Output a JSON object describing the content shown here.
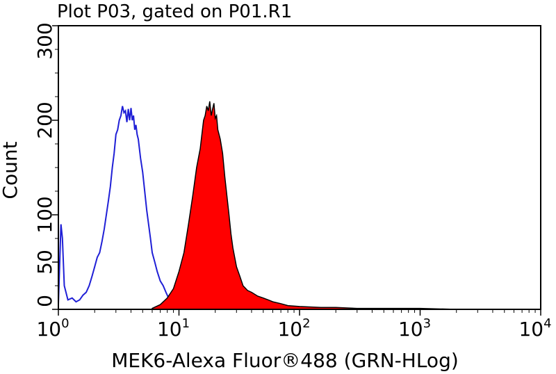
{
  "chart_data": {
    "type": "area",
    "title": "Plot P03, gated on P01.R1",
    "xlabel": "MEK6-Alexa Fluor®488 (GRN-HLog)",
    "ylabel": "Count",
    "x_scale": "log",
    "xlim": [
      1,
      10000
    ],
    "ylim": [
      0,
      300
    ],
    "x_ticks": [
      {
        "base": "10",
        "exp": "0"
      },
      {
        "base": "10",
        "exp": "1"
      },
      {
        "base": "10",
        "exp": "2"
      },
      {
        "base": "10",
        "exp": "3"
      },
      {
        "base": "10",
        "exp": "4"
      }
    ],
    "y_ticks": [
      "0",
      "50",
      "100",
      "200",
      "300"
    ],
    "y_tick_values": [
      0,
      50,
      100,
      200,
      300
    ],
    "grid": false,
    "legend": "none",
    "series": [
      {
        "style": "outline",
        "color": "#1f1fd6",
        "x": [
          1.0,
          1.05,
          1.08,
          1.12,
          1.2,
          1.3,
          1.4,
          1.5,
          1.6,
          1.7,
          1.8,
          1.9,
          2.0,
          2.1,
          2.2,
          2.3,
          2.4,
          2.5,
          2.6,
          2.7,
          2.8,
          2.9,
          3.0,
          3.1,
          3.2,
          3.3,
          3.4,
          3.5,
          3.6,
          3.7,
          3.8,
          3.9,
          4.0,
          4.1,
          4.2,
          4.3,
          4.4,
          4.5,
          4.6,
          4.7,
          4.8,
          5.0,
          5.2,
          5.4,
          5.6,
          5.8,
          6.0,
          6.3,
          6.6,
          7.0,
          7.4,
          7.8,
          8.2,
          8.6,
          9.0,
          10.0
        ],
        "y": [
          5,
          90,
          75,
          25,
          10,
          12,
          8,
          10,
          15,
          18,
          25,
          35,
          45,
          55,
          60,
          72,
          85,
          100,
          115,
          130,
          150,
          165,
          185,
          190,
          200,
          205,
          215,
          208,
          210,
          198,
          212,
          200,
          213,
          200,
          205,
          190,
          195,
          185,
          180,
          170,
          160,
          145,
          125,
          105,
          90,
          75,
          60,
          50,
          40,
          30,
          25,
          18,
          12,
          8,
          5,
          2
        ]
      },
      {
        "style": "filled",
        "color": "#ff0000",
        "x": [
          6.0,
          7.0,
          8.0,
          9.0,
          10.0,
          11.0,
          12.0,
          13.0,
          14.0,
          15.0,
          15.5,
          16.0,
          16.5,
          17.0,
          17.5,
          18.0,
          18.5,
          19.0,
          19.5,
          20.0,
          20.5,
          21.0,
          22.0,
          23.0,
          24.0,
          25.0,
          26.0,
          27.0,
          28.0,
          30.0,
          32.0,
          34.0,
          37.0,
          40.0,
          45.0,
          50.0,
          55.0,
          60.0,
          70.0,
          80.0,
          100.0,
          150.0,
          200.0,
          300.0,
          500.0,
          1000.0,
          2000.0
        ],
        "y": [
          1,
          5,
          12,
          22,
          40,
          60,
          90,
          120,
          150,
          170,
          185,
          200,
          205,
          215,
          210,
          220,
          205,
          212,
          218,
          202,
          205,
          190,
          180,
          165,
          140,
          120,
          100,
          80,
          65,
          45,
          35,
          25,
          20,
          18,
          14,
          12,
          10,
          8,
          6,
          4,
          3,
          2,
          2,
          1,
          1,
          1,
          0
        ]
      }
    ]
  }
}
